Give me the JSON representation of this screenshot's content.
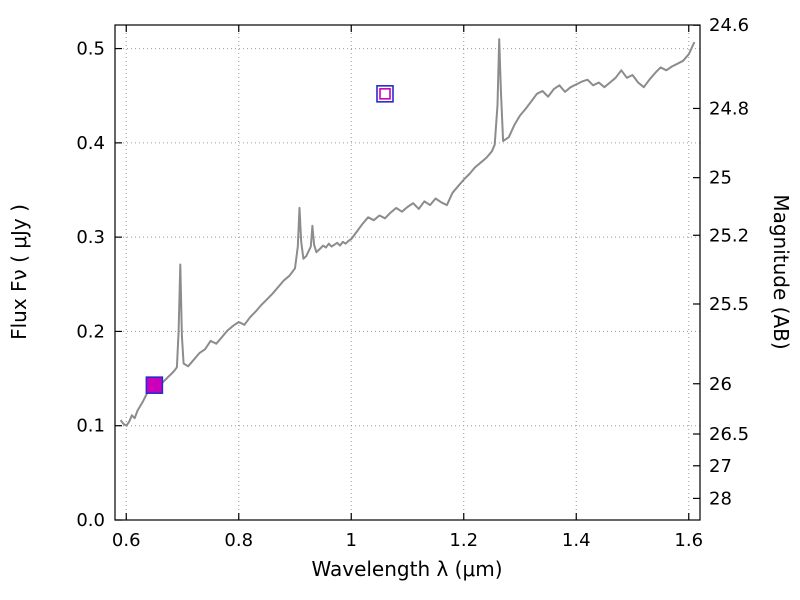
{
  "figure": {
    "background": "#ffffff",
    "axis_color": "#000000",
    "grid_color": "#9a9a9a"
  },
  "chart_data": {
    "type": "line",
    "title": "",
    "xlabel": "Wavelength  λ (μm)",
    "ylabel_left": "Flux  Fν  ( μJy )",
    "ylabel_right": "Magnitude (AB)",
    "xlim": [
      0.58,
      1.62
    ],
    "ylim": [
      0.0,
      0.525
    ],
    "grid": true,
    "x_ticks": [
      0.6,
      0.8,
      1.0,
      1.2,
      1.4,
      1.6
    ],
    "x_tick_labels": [
      "0.6",
      "0.8",
      "1",
      "1.2",
      "1.4",
      "1.6"
    ],
    "y_ticks": [
      0.0,
      0.1,
      0.2,
      0.3,
      0.4,
      0.5
    ],
    "y_tick_labels": [
      "0.0",
      "0.1",
      "0.2",
      "0.3",
      "0.4",
      "0.5"
    ],
    "right_axis": {
      "label": "Magnitude (AB)",
      "ticks": [
        {
          "label": "24.6",
          "flux": 0.5248
        },
        {
          "label": "24.8",
          "flux": 0.4365
        },
        {
          "label": "25",
          "flux": 0.3631
        },
        {
          "label": "25.2",
          "flux": 0.302
        },
        {
          "label": "25.5",
          "flux": 0.2291
        },
        {
          "label": "26",
          "flux": 0.1445
        },
        {
          "label": "26.5",
          "flux": 0.0912
        },
        {
          "label": "27",
          "flux": 0.0575
        },
        {
          "label": "28",
          "flux": 0.0229
        }
      ]
    },
    "series": [
      {
        "name": "galaxy-spectrum",
        "color": "#8c8c8c",
        "x": [
          0.59,
          0.595,
          0.6,
          0.605,
          0.61,
          0.615,
          0.62,
          0.625,
          0.63,
          0.635,
          0.64,
          0.645,
          0.65,
          0.655,
          0.66,
          0.665,
          0.67,
          0.675,
          0.68,
          0.685,
          0.69,
          0.693,
          0.696,
          0.699,
          0.702,
          0.71,
          0.72,
          0.73,
          0.74,
          0.75,
          0.76,
          0.77,
          0.78,
          0.79,
          0.8,
          0.81,
          0.82,
          0.83,
          0.84,
          0.85,
          0.86,
          0.87,
          0.88,
          0.89,
          0.9,
          0.905,
          0.908,
          0.911,
          0.915,
          0.92,
          0.928,
          0.931,
          0.934,
          0.938,
          0.945,
          0.95,
          0.955,
          0.96,
          0.965,
          0.97,
          0.975,
          0.98,
          0.985,
          0.99,
          0.995,
          1.0,
          1.01,
          1.02,
          1.03,
          1.04,
          1.05,
          1.06,
          1.07,
          1.08,
          1.09,
          1.1,
          1.11,
          1.12,
          1.13,
          1.14,
          1.15,
          1.16,
          1.17,
          1.18,
          1.19,
          1.2,
          1.21,
          1.22,
          1.23,
          1.24,
          1.25,
          1.255,
          1.26,
          1.263,
          1.266,
          1.27,
          1.28,
          1.29,
          1.3,
          1.31,
          1.32,
          1.33,
          1.34,
          1.35,
          1.36,
          1.37,
          1.38,
          1.39,
          1.4,
          1.41,
          1.42,
          1.43,
          1.44,
          1.45,
          1.46,
          1.47,
          1.48,
          1.49,
          1.5,
          1.51,
          1.52,
          1.53,
          1.54,
          1.55,
          1.56,
          1.57,
          1.58,
          1.59,
          1.6,
          1.61
        ],
        "y": [
          0.106,
          0.102,
          0.1,
          0.104,
          0.111,
          0.108,
          0.116,
          0.121,
          0.126,
          0.132,
          0.138,
          0.142,
          0.143,
          0.14,
          0.141,
          0.146,
          0.149,
          0.152,
          0.155,
          0.158,
          0.162,
          0.2,
          0.271,
          0.195,
          0.166,
          0.163,
          0.17,
          0.177,
          0.181,
          0.19,
          0.187,
          0.194,
          0.201,
          0.206,
          0.21,
          0.207,
          0.215,
          0.221,
          0.228,
          0.234,
          0.24,
          0.247,
          0.254,
          0.259,
          0.267,
          0.29,
          0.331,
          0.295,
          0.277,
          0.28,
          0.29,
          0.312,
          0.292,
          0.284,
          0.288,
          0.291,
          0.289,
          0.293,
          0.29,
          0.292,
          0.294,
          0.291,
          0.295,
          0.293,
          0.296,
          0.298,
          0.306,
          0.314,
          0.321,
          0.318,
          0.323,
          0.32,
          0.326,
          0.331,
          0.327,
          0.332,
          0.336,
          0.33,
          0.338,
          0.334,
          0.341,
          0.337,
          0.334,
          0.347,
          0.354,
          0.361,
          0.367,
          0.374,
          0.379,
          0.384,
          0.391,
          0.398,
          0.44,
          0.51,
          0.455,
          0.402,
          0.406,
          0.419,
          0.429,
          0.436,
          0.444,
          0.452,
          0.455,
          0.449,
          0.457,
          0.461,
          0.454,
          0.459,
          0.462,
          0.465,
          0.467,
          0.461,
          0.464,
          0.459,
          0.464,
          0.469,
          0.477,
          0.469,
          0.472,
          0.464,
          0.459,
          0.467,
          0.474,
          0.48,
          0.477,
          0.481,
          0.484,
          0.487,
          0.494,
          0.507
        ]
      }
    ],
    "markers": [
      {
        "name": "photometry-point-1",
        "x": 0.65,
        "y": 0.143,
        "edge_color": "#2a2ad0",
        "inner_color": "#cc00bb",
        "filled": true
      },
      {
        "name": "photometry-point-2",
        "x": 1.06,
        "y": 0.452,
        "edge_color": "#2a2ad0",
        "inner_color": "#cc00bb",
        "filled": false
      }
    ]
  }
}
